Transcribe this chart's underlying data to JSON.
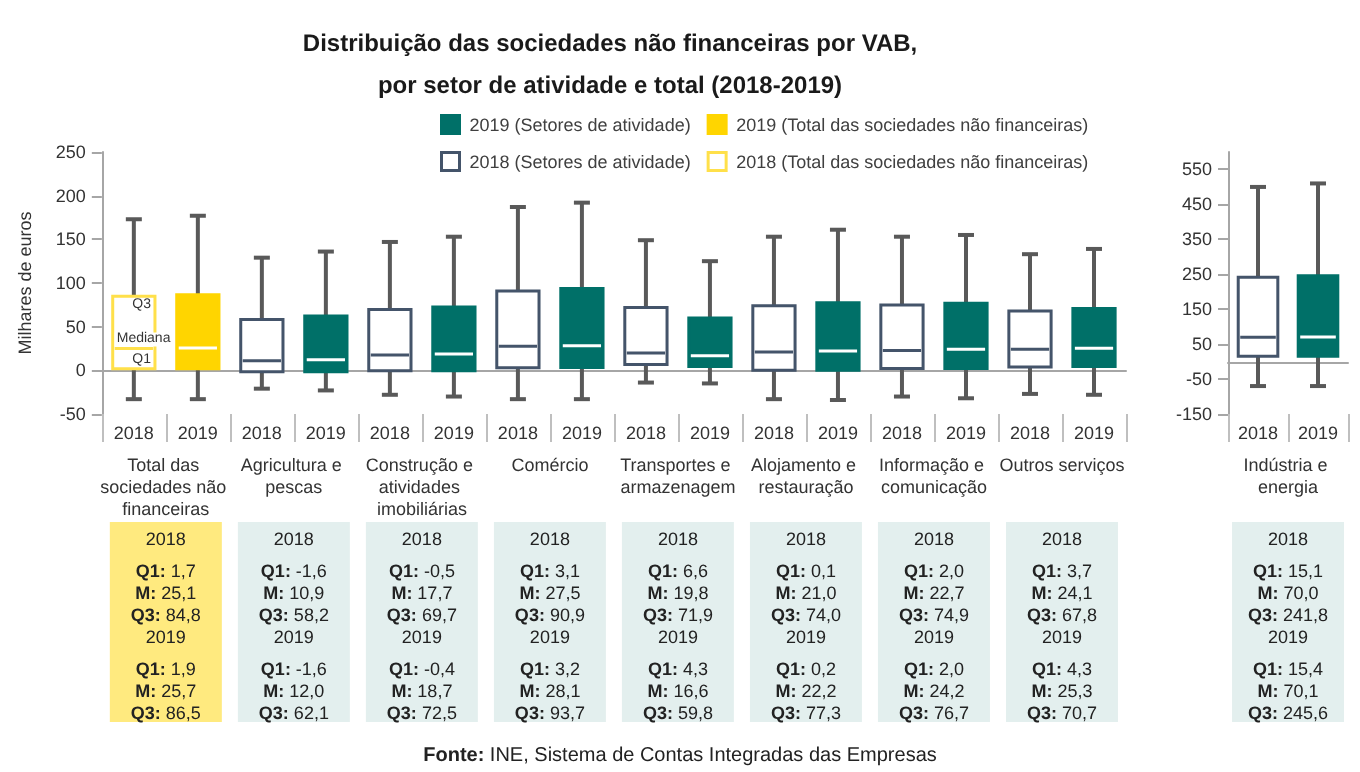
{
  "chart_data": [
    {
      "type": "box",
      "title": "Distribuição das sociedades não financeiras por VAB,\npor setor de atividade e total (2018-2019)",
      "ylabel": "Milhares de euros",
      "categories": [
        "2018",
        "2019",
        "2018",
        "2019",
        "2018",
        "2019",
        "2018",
        "2019",
        "2018",
        "2019",
        "2018",
        "2019",
        "2018",
        "2019",
        "2018",
        "2019"
      ],
      "ylim": [
        -50,
        250
      ],
      "yticks": [
        -50,
        0,
        50,
        100,
        150,
        200,
        250
      ],
      "legend": "top",
      "series": [
        {
          "name": "2019 (Setores de atividade)",
          "color": "#007068",
          "boxes": [
            null,
            null,
            null,
            {
              "low": -23,
              "q1": -1.6,
              "median": 12.0,
              "q3": 62.1,
              "high": 136
            },
            null,
            {
              "low": -30,
              "q1": -0.4,
              "median": 18.7,
              "q3": 72.5,
              "high": 153
            },
            null,
            {
              "low": -33,
              "q1": 3.2,
              "median": 28.1,
              "q3": 93.7,
              "high": 192
            },
            null,
            {
              "low": -15,
              "q1": 4.3,
              "median": 16.6,
              "q3": 59.8,
              "high": 125
            },
            null,
            {
              "low": -34,
              "q1": 0.2,
              "median": 22.2,
              "q3": 77.3,
              "high": 161
            },
            null,
            {
              "low": -32,
              "q1": 2.0,
              "median": 24.2,
              "q3": 76.7,
              "high": 155
            },
            null,
            {
              "low": -28,
              "q1": 4.3,
              "median": 25.3,
              "q3": 70.7,
              "high": 139
            }
          ],
          "value_labels": [
            null,
            null,
            null,
            "2019\nQ1: -1,6\nM: 12,0\nQ3: 62,1",
            null,
            "2019\nQ1: -0,4\nM: 18,7\nQ3: 72,5",
            null,
            "2019\nQ1: 3,2\nM: 28,1\nQ3: 93,7",
            null,
            "2019\nQ1: 4,3\nM: 16,6\nQ3: 59,8",
            null,
            "2019\nQ1: 0,2\nM: 22,2\nQ3: 77,3",
            null,
            "2019\nQ1: 2,0\nM: 24,2\nQ3: 76,7",
            null,
            "2019\nQ1: 4,3\nM: 25,3\nQ3: 70,7"
          ]
        },
        {
          "name": "2019 (Total das sociedades não financeiras)",
          "color": "#ffd500",
          "boxes": [
            null,
            {
              "low": -33,
              "q1": 1.9,
              "median": 25.7,
              "q3": 86.5,
              "high": 177
            },
            null,
            null,
            null,
            null,
            null,
            null,
            null,
            null,
            null,
            null,
            null,
            null,
            null,
            null
          ],
          "value_labels": [
            null,
            "2019\nQ1: 1,9\nM: 25,7\nQ3: 86,5",
            null,
            null,
            null,
            null,
            null,
            null,
            null,
            null,
            null,
            null,
            null,
            null,
            null,
            null
          ]
        },
        {
          "name": "2018 (Setores de atividade)",
          "color": "#44546a",
          "boxes": [
            null,
            null,
            {
              "low": -21,
              "q1": -1.6,
              "median": 10.9,
              "q3": 58.2,
              "high": 129
            },
            null,
            {
              "low": -28,
              "q1": -0.5,
              "median": 17.7,
              "q3": 69.7,
              "high": 147
            },
            null,
            {
              "low": -33,
              "q1": 3.1,
              "median": 27.5,
              "q3": 90.9,
              "high": 187
            },
            null,
            {
              "low": -14,
              "q1": 6.6,
              "median": 19.8,
              "q3": 71.9,
              "high": 149
            },
            null,
            {
              "low": -33,
              "q1": 0.1,
              "median": 21.0,
              "q3": 74.0,
              "high": 153
            },
            null,
            {
              "low": -30,
              "q1": 2.0,
              "median": 22.7,
              "q3": 74.9,
              "high": 153
            },
            null,
            {
              "low": -27,
              "q1": 3.7,
              "median": 24.1,
              "q3": 67.8,
              "high": 133
            },
            null
          ],
          "value_labels": [
            null,
            null,
            "2018\nQ1: -1,6\nM: 10,9\nQ3: 58,2",
            null,
            "2018\nQ1: -0,5\nM: 17,7\nQ3: 69,7",
            null,
            "2018\nQ1: 3,1\nM: 27,5\nQ3: 90,9",
            null,
            "2018\nQ1: 6,6\nM: 19,8\nQ3: 71,9",
            null,
            "2018\nQ1: 0,1\nM: 21,0\nQ3: 74,0",
            null,
            "2018\nQ1: 2,0\nM: 22,7\nQ3: 74,9",
            null,
            "2018\nQ1: 3,7\nM: 24,1\nQ3: 67,8",
            null
          ]
        },
        {
          "name": "2018 (Total das sociedades não financeiras)",
          "color": "#ffe04a",
          "boxes": [
            {
              "low": -33,
              "q1": 1.7,
              "median": 25.1,
              "q3": 84.8,
              "high": 173
            },
            null,
            null,
            null,
            null,
            null,
            null,
            null,
            null,
            null,
            null,
            null,
            null,
            null,
            null,
            null
          ],
          "value_labels": [
            "2018\nQ1: 1,7\nM: 25,1\nQ3: 84,8",
            null,
            null,
            null,
            null,
            null,
            null,
            null,
            null,
            null,
            null,
            null,
            null,
            null,
            null,
            null
          ]
        }
      ],
      "annotations": [
        "Total das sociedades não financeiras",
        "Agricultura e pescas",
        "Construção e atividades imobiliárias",
        "Comércio",
        "Transportes e armazenagem",
        "Alojamento e restauração",
        "Informação e comunicação",
        "Outros serviços",
        {
          "text": "Q3",
          "x": "2018",
          "y": 84.8
        },
        {
          "text": "Mediana",
          "x": "2018",
          "y": 25.1
        },
        {
          "text": "Q1",
          "x": "2018",
          "y": 1.7
        },
        "Fonte: INE, Sistema de Contas Integradas das Empresas"
      ]
    },
    {
      "type": "box",
      "categories": [
        "2018",
        "2019"
      ],
      "ylim": [
        -150,
        600
      ],
      "yticks": [
        -150,
        -50,
        50,
        150,
        250,
        350,
        450,
        550
      ],
      "series": [
        {
          "color": "#44546a",
          "boxes": [
            {
              "low": -70,
              "q1": 15.1,
              "median": 70.0,
              "q3": 241.8,
              "high": 500
            },
            null
          ],
          "value_labels": [
            "2018\nQ1: 15,1\nM: 70,0\nQ3: 241,8",
            null
          ]
        },
        {
          "color": "#007068",
          "boxes": [
            null,
            {
              "low": -70,
              "q1": 15.4,
              "median": 70.1,
              "q3": 245.6,
              "high": 510
            }
          ],
          "value_labels": [
            null,
            "2019\nQ1: 15,4\nM: 70,1\nQ3: 245,6"
          ]
        }
      ],
      "annotations": [
        "Indústria e energia"
      ]
    }
  ]
}
